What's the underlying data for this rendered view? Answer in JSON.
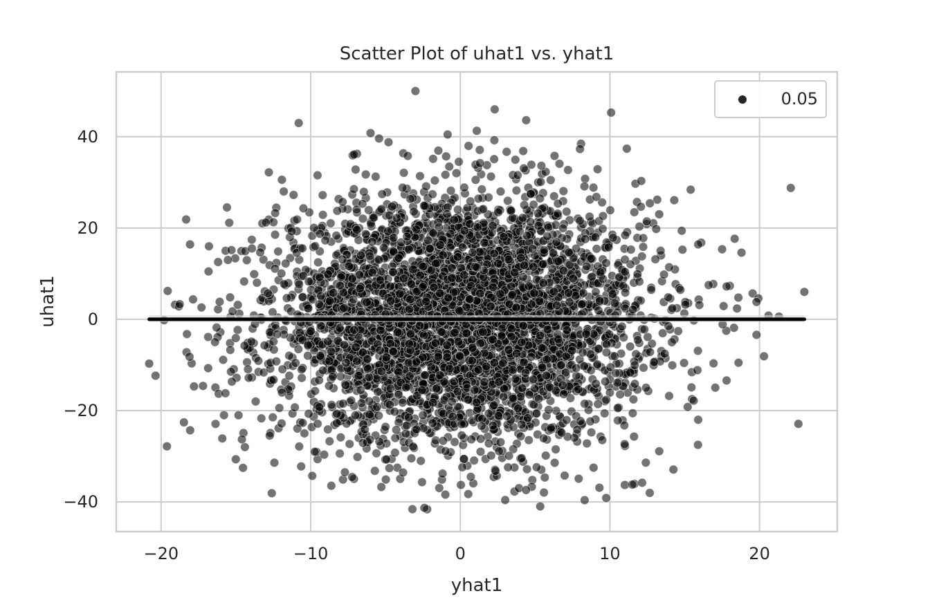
{
  "chart_data": {
    "type": "scatter",
    "title": "Scatter Plot of uhat1 vs. yhat1",
    "xlabel": "yhat1",
    "ylabel": "uhat1",
    "xlim": [
      -23,
      25.2
    ],
    "ylim": [
      -46.5,
      54.2
    ],
    "xticks": [
      -20,
      -10,
      0,
      10,
      20
    ],
    "yticks": [
      -40,
      -20,
      0,
      20,
      40
    ],
    "xtick_labels": [
      "−20",
      "−10",
      "0",
      "10",
      "20"
    ],
    "ytick_labels": [
      "−40",
      "−20",
      "0",
      "20",
      "40"
    ],
    "grid": true,
    "legend": {
      "placement": "top-right",
      "entries": [
        {
          "label": "0.05",
          "marker": "circle",
          "color": "#262626"
        }
      ]
    },
    "series": [
      {
        "kind": "points",
        "color": "#000000",
        "opacity": 0.55,
        "edge_color": "#ffffff",
        "approx_count": 5000,
        "distribution": "approximately bivariate normal centered near (0, 0); x spread ≈ 6, y spread ≈ 13",
        "points": [
          [
            -3,
            50
          ],
          [
            2.3,
            46
          ],
          [
            -10.8,
            43
          ],
          [
            1.1,
            41.3
          ],
          [
            -6,
            40.8
          ],
          [
            -4.8,
            38.8
          ],
          [
            8,
            37.3
          ],
          [
            1.3,
            37.1
          ],
          [
            3.1,
            36.7
          ],
          [
            -7.2,
            35.9
          ],
          [
            -12.8,
            32.2
          ],
          [
            15.4,
            28.4
          ],
          [
            -11.8,
            28
          ],
          [
            12.1,
            30.3
          ],
          [
            14.3,
            26.1
          ],
          [
            -15.6,
            24.5
          ],
          [
            -16.8,
            16
          ],
          [
            -13,
            21.2
          ],
          [
            18.8,
            14.6
          ],
          [
            -17.3,
            2.6
          ],
          [
            -20.8,
            -9.7
          ],
          [
            -18.3,
            -7.2
          ],
          [
            -18.1,
            -8.2
          ],
          [
            -17.8,
            -14.7
          ],
          [
            -17.2,
            -14.6
          ],
          [
            -15.8,
            -21
          ],
          [
            -15.7,
            -16.2
          ],
          [
            -14.5,
            -24.9
          ],
          [
            -14.4,
            -28
          ],
          [
            -14.6,
            -26.3
          ],
          [
            -12.6,
            -38.1
          ],
          [
            -9.9,
            -34.3
          ],
          [
            -3.2,
            -41.6
          ],
          [
            -2.4,
            -41.3
          ],
          [
            -1,
            -38.4
          ],
          [
            0.7,
            -34.5
          ],
          [
            3,
            -39.6
          ],
          [
            4.4,
            -37.4
          ],
          [
            9.3,
            -36.9
          ],
          [
            11,
            -36.3
          ],
          [
            11.5,
            -36.2
          ],
          [
            13.3,
            -28.9
          ],
          [
            12.4,
            -31.4
          ],
          [
            15.9,
            -22
          ],
          [
            17.8,
            -13.4
          ],
          [
            18.6,
            -9.5
          ],
          [
            19.8,
            -3.4
          ],
          [
            20.3,
            -8.1
          ],
          [
            22.6,
            -22.9
          ],
          [
            23,
            6
          ],
          [
            20.6,
            0.8
          ],
          [
            21.3,
            0.6
          ],
          [
            19.8,
            3.8
          ],
          [
            17.6,
            2.9
          ],
          [
            17.8,
            7.2
          ],
          [
            16.6,
            7.5
          ],
          [
            16.1,
            16.8
          ],
          [
            15.9,
            16.4
          ],
          [
            14.8,
            19.4
          ],
          [
            13.3,
            23
          ],
          [
            -7.1,
            36.1
          ],
          [
            -0.1,
            34.5
          ],
          [
            6.3,
            35.8
          ],
          [
            -9.2,
            27.2
          ],
          [
            9.1,
            26.8
          ],
          [
            -19.8,
            -0.2
          ],
          [
            -16.4,
            -5
          ],
          [
            15.2,
            -19.2
          ],
          [
            -13.3,
            -21.7
          ],
          [
            5.1,
            -32.4
          ]
        ]
      },
      {
        "kind": "regression-line",
        "color": "#000000",
        "x": [
          -20.8,
          23
        ],
        "y": [
          0,
          0
        ]
      }
    ]
  }
}
